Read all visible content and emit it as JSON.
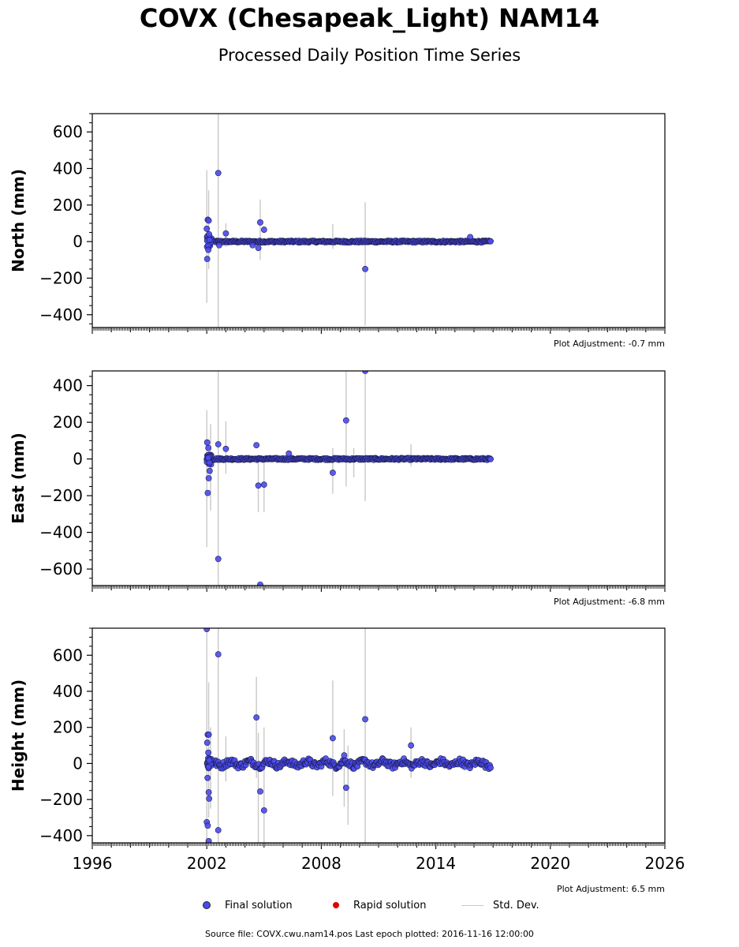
{
  "title": "COVX (Chesapeak_Light) NAM14",
  "subtitle": "Processed Daily Position Time Series",
  "legend": {
    "final": "Final solution",
    "rapid": "Rapid solution",
    "std": "Std. Dev."
  },
  "footer": "Source file: COVX.cwu.nam14.pos  Last epoch plotted: 2016-11-16 12:00:00",
  "colors": {
    "final": "#4a4af0",
    "rapid": "#e00000",
    "std": "#c8c8c8"
  },
  "chart_data": [
    {
      "type": "scatter",
      "ylabel": "North (mm)",
      "adjustment": "Plot Adjustment: -0.7 mm",
      "xlim": [
        1996,
        2026
      ],
      "ylim": [
        -470,
        700
      ],
      "yticks": [
        -400,
        -200,
        0,
        200,
        400,
        600
      ],
      "xticks": [
        1996,
        2002,
        2008,
        2014,
        2020,
        2026
      ],
      "data_span": [
        2002.0,
        2016.88
      ],
      "outliers": [
        {
          "x": 2002.05,
          "y": 120
        },
        {
          "x": 2002.1,
          "y": 115
        },
        {
          "x": 2002.0,
          "y": 70
        },
        {
          "x": 2002.02,
          "y": -95
        },
        {
          "x": 2002.08,
          "y": -45
        },
        {
          "x": 2002.12,
          "y": 40
        },
        {
          "x": 2002.6,
          "y": 375
        },
        {
          "x": 2002.65,
          "y": -20
        },
        {
          "x": 2003.0,
          "y": 45
        },
        {
          "x": 2004.8,
          "y": 105
        },
        {
          "x": 2005.0,
          "y": 65
        },
        {
          "x": 2004.7,
          "y": -35
        },
        {
          "x": 2004.4,
          "y": -20
        },
        {
          "x": 2010.3,
          "y": -150
        },
        {
          "x": 2015.8,
          "y": 25
        }
      ],
      "errorbars": [
        {
          "x": 2002.0,
          "lo": -335,
          "hi": 390
        },
        {
          "x": 2002.1,
          "lo": -150,
          "hi": 280
        },
        {
          "x": 2002.6,
          "lo": -470,
          "hi": 700
        },
        {
          "x": 2003.0,
          "lo": -30,
          "hi": 100
        },
        {
          "x": 2004.8,
          "lo": -100,
          "hi": 230
        },
        {
          "x": 2008.6,
          "lo": -40,
          "hi": 95
        },
        {
          "x": 2010.3,
          "lo": -460,
          "hi": 215
        }
      ]
    },
    {
      "type": "scatter",
      "ylabel": "East (mm)",
      "adjustment": "Plot Adjustment: -6.8 mm",
      "xlim": [
        1996,
        2026
      ],
      "ylim": [
        -690,
        480
      ],
      "yticks": [
        -600,
        -400,
        -200,
        0,
        200,
        400
      ],
      "xticks": [
        1996,
        2002,
        2008,
        2014,
        2020,
        2026
      ],
      "data_span": [
        2002.0,
        2016.88
      ],
      "outliers": [
        {
          "x": 2002.02,
          "y": 90
        },
        {
          "x": 2002.08,
          "y": 60
        },
        {
          "x": 2002.05,
          "y": -185
        },
        {
          "x": 2002.1,
          "y": -105
        },
        {
          "x": 2002.15,
          "y": -65
        },
        {
          "x": 2002.6,
          "y": 80
        },
        {
          "x": 2002.6,
          "y": -545
        },
        {
          "x": 2003.0,
          "y": 55
        },
        {
          "x": 2004.6,
          "y": 75
        },
        {
          "x": 2004.7,
          "y": -145
        },
        {
          "x": 2004.8,
          "y": -685
        },
        {
          "x": 2005.0,
          "y": -140
        },
        {
          "x": 2008.6,
          "y": -75
        },
        {
          "x": 2009.3,
          "y": 210
        },
        {
          "x": 2010.3,
          "y": 480
        },
        {
          "x": 2006.3,
          "y": 30
        }
      ],
      "errorbars": [
        {
          "x": 2002.0,
          "lo": -480,
          "hi": 265
        },
        {
          "x": 2002.2,
          "lo": -280,
          "hi": 190
        },
        {
          "x": 2002.6,
          "lo": -690,
          "hi": 480
        },
        {
          "x": 2003.0,
          "lo": -80,
          "hi": 205
        },
        {
          "x": 2004.7,
          "lo": -290,
          "hi": 10
        },
        {
          "x": 2005.0,
          "lo": -290,
          "hi": 10
        },
        {
          "x": 2008.6,
          "lo": -190,
          "hi": 60
        },
        {
          "x": 2009.3,
          "lo": -150,
          "hi": 480
        },
        {
          "x": 2010.3,
          "lo": -230,
          "hi": 480
        },
        {
          "x": 2009.7,
          "lo": -100,
          "hi": 60
        },
        {
          "x": 2012.7,
          "lo": -40,
          "hi": 80
        }
      ]
    },
    {
      "type": "scatter",
      "ylabel": "Height (mm)",
      "adjustment": "Plot Adjustment: 6.5 mm",
      "xlim": [
        1996,
        2026
      ],
      "ylim": [
        -440,
        750
      ],
      "yticks": [
        -400,
        -200,
        0,
        200,
        400,
        600
      ],
      "xticks": [
        1996,
        2002,
        2008,
        2014,
        2020,
        2026
      ],
      "data_span": [
        2002.0,
        2016.88
      ],
      "outliers": [
        {
          "x": 2002.0,
          "y": 745
        },
        {
          "x": 2002.05,
          "y": 160
        },
        {
          "x": 2002.1,
          "y": 160
        },
        {
          "x": 2002.02,
          "y": 115
        },
        {
          "x": 2002.08,
          "y": 60
        },
        {
          "x": 2002.04,
          "y": -80
        },
        {
          "x": 2002.1,
          "y": -160
        },
        {
          "x": 2002.12,
          "y": -195
        },
        {
          "x": 2002.0,
          "y": -325
        },
        {
          "x": 2002.05,
          "y": -345
        },
        {
          "x": 2002.1,
          "y": -430
        },
        {
          "x": 2002.6,
          "y": 605
        },
        {
          "x": 2002.6,
          "y": -370
        },
        {
          "x": 2004.6,
          "y": 255
        },
        {
          "x": 2004.8,
          "y": -155
        },
        {
          "x": 2005.0,
          "y": -260
        },
        {
          "x": 2008.6,
          "y": 140
        },
        {
          "x": 2009.2,
          "y": 45
        },
        {
          "x": 2009.3,
          "y": -135
        },
        {
          "x": 2010.3,
          "y": 245
        },
        {
          "x": 2012.7,
          "y": 100
        }
      ],
      "errorbars": [
        {
          "x": 2002.0,
          "lo": -440,
          "hi": 750
        },
        {
          "x": 2002.1,
          "lo": -300,
          "hi": 450
        },
        {
          "x": 2002.2,
          "lo": -250,
          "hi": 200
        },
        {
          "x": 2002.6,
          "lo": -440,
          "hi": 750
        },
        {
          "x": 2003.0,
          "lo": -100,
          "hi": 150
        },
        {
          "x": 2004.6,
          "lo": -80,
          "hi": 480
        },
        {
          "x": 2004.7,
          "lo": -440,
          "hi": 170
        },
        {
          "x": 2005.0,
          "lo": -440,
          "hi": 200
        },
        {
          "x": 2008.6,
          "lo": -180,
          "hi": 460
        },
        {
          "x": 2009.2,
          "lo": -240,
          "hi": 190
        },
        {
          "x": 2009.4,
          "lo": -340,
          "hi": 100
        },
        {
          "x": 2010.3,
          "lo": -440,
          "hi": 750
        },
        {
          "x": 2012.7,
          "lo": -80,
          "hi": 200
        }
      ]
    }
  ]
}
